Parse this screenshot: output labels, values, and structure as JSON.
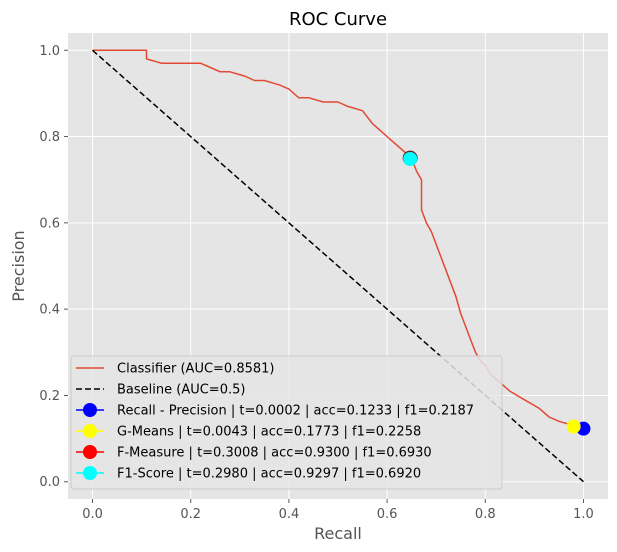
{
  "chart_data": {
    "type": "line",
    "title": "ROC Curve",
    "xlabel": "Recall",
    "ylabel": "Precision",
    "xlim": [
      -0.05,
      1.05
    ],
    "ylim": [
      -0.04,
      1.04
    ],
    "xticks": [
      0.0,
      0.2,
      0.4,
      0.6,
      0.8,
      1.0
    ],
    "yticks": [
      0.0,
      0.2,
      0.4,
      0.6,
      0.8,
      1.0
    ],
    "xtick_labels": [
      "0.0",
      "0.2",
      "0.4",
      "0.6",
      "0.8",
      "1.0"
    ],
    "ytick_labels": [
      "0.0",
      "0.2",
      "0.4",
      "0.6",
      "0.8",
      "1.0"
    ],
    "grid": true,
    "legend_position": "lower-left",
    "series": [
      {
        "name": "Classifier (AUC=0.8581)",
        "color": "#E24A33",
        "style": "solid",
        "x": [
          0.0,
          0.11,
          0.11,
          0.14,
          0.16,
          0.22,
          0.24,
          0.26,
          0.28,
          0.31,
          0.33,
          0.35,
          0.38,
          0.4,
          0.41,
          0.42,
          0.44,
          0.47,
          0.5,
          0.52,
          0.55,
          0.57,
          0.59,
          0.61,
          0.62,
          0.63,
          0.64,
          0.65,
          0.66,
          0.67,
          0.67,
          0.68,
          0.69,
          0.7,
          0.71,
          0.72,
          0.73,
          0.74,
          0.75,
          0.76,
          0.77,
          0.78,
          0.79,
          0.8,
          0.81,
          0.83,
          0.85,
          0.88,
          0.91,
          0.93,
          0.95,
          0.98,
          1.0
        ],
        "y": [
          1.0,
          1.0,
          0.98,
          0.97,
          0.97,
          0.97,
          0.96,
          0.95,
          0.95,
          0.94,
          0.93,
          0.93,
          0.92,
          0.91,
          0.9,
          0.89,
          0.89,
          0.88,
          0.88,
          0.87,
          0.86,
          0.83,
          0.81,
          0.79,
          0.78,
          0.77,
          0.76,
          0.75,
          0.72,
          0.7,
          0.63,
          0.6,
          0.58,
          0.55,
          0.52,
          0.49,
          0.46,
          0.43,
          0.39,
          0.36,
          0.33,
          0.3,
          0.28,
          0.27,
          0.25,
          0.23,
          0.21,
          0.19,
          0.17,
          0.15,
          0.14,
          0.13,
          0.12
        ]
      },
      {
        "name": "Baseline  (AUC=0.5)",
        "color": "#000000",
        "style": "dashed",
        "x": [
          0.0,
          1.0
        ],
        "y": [
          1.0,
          0.0
        ]
      }
    ],
    "markers": [
      {
        "name": "Recall - Precision | t=0.0002 | acc=0.1233 | f1=0.2187",
        "color": "#0000FF",
        "x": 1.0,
        "y": 0.123
      },
      {
        "name": "G-Means | t=0.0043 | acc=0.1773 | f1=0.2258",
        "color": "#FFFF00",
        "x": 0.98,
        "y": 0.128
      },
      {
        "name": "F-Measure | t=0.3008 | acc=0.9300 | f1=0.6930",
        "color": "#FF0000",
        "x": 0.647,
        "y": 0.75
      },
      {
        "name": "F1-Score | t=0.2980 | acc=0.9297 | f1=0.6920",
        "color": "#00FFFF",
        "x": 0.647,
        "y": 0.748
      }
    ]
  }
}
